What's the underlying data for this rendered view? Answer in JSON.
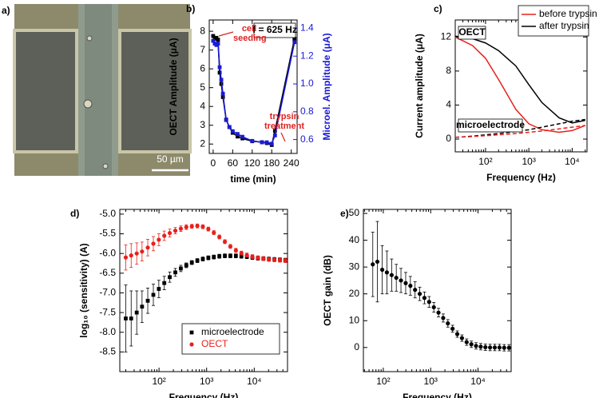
{
  "chart_data": [
    {
      "type": "image",
      "panel": "a)",
      "scale_bar": "50 µm"
    },
    {
      "type": "line",
      "panel": "b)",
      "xlabel": "time (min)",
      "ylabel": "OECT Amplitude (μA)",
      "y2label": "Microel. Amplitude (μA)",
      "x": [
        0,
        5,
        10,
        15,
        20,
        25,
        30,
        40,
        50,
        60,
        75,
        90,
        120,
        150,
        165,
        180,
        190,
        250
      ],
      "xlim": [
        -12,
        258
      ],
      "xticks": [
        0,
        60,
        120,
        180,
        240
      ],
      "ylim": [
        1.5,
        8.6
      ],
      "yticks": [
        2,
        3,
        4,
        5,
        6,
        7,
        8
      ],
      "y2lim": [
        0.5,
        1.46
      ],
      "y2ticks": [
        0.6,
        0.8,
        {
          "value": 1,
          "label": "1.0"
        },
        1.2,
        1.4
      ],
      "series": [
        {
          "color": "#000000",
          "marker": "square",
          "values": [
            7.75,
            7.6,
            7.65,
            7.55,
            5.8,
            5.2,
            4.5,
            3.3,
            2.9,
            2.6,
            2.4,
            2.3,
            2.15,
            2.1,
            2.05,
            1.95,
            2.7,
            7.6
          ]
        },
        {
          "color": "#1a1ad6",
          "marker": "square",
          "axis": "y2",
          "values": [
            1.31,
            1.29,
            1.28,
            1.29,
            1.12,
            1.03,
            0.93,
            0.74,
            0.69,
            0.66,
            0.64,
            0.62,
            0.59,
            0.58,
            0.58,
            0.57,
            0.63,
            1.3
          ]
        }
      ],
      "annotations": [
        {
          "text": "cell seeding",
          "color": "#e02020"
        },
        {
          "text": "trypsin treatment",
          "color": "#e02020"
        },
        {
          "text": "f = 625 Hz",
          "color": "#000000"
        }
      ]
    },
    {
      "type": "line",
      "panel": "c)",
      "xlabel": "Frequency (Hz)",
      "ylabel": "Current amplitude (μA)",
      "log_x": true,
      "x": [
        20,
        50,
        100,
        200,
        500,
        1000,
        2000,
        5000,
        10000,
        20000
      ],
      "xlim": [
        20,
        22000
      ],
      "xticks": [
        {
          "value": 100,
          "label": "10²"
        },
        {
          "value": 1000,
          "label": "10³"
        },
        {
          "value": 10000,
          "label": "10⁴"
        }
      ],
      "ylim": [
        -1.5,
        14
      ],
      "yticks": [
        0,
        4,
        8,
        12
      ],
      "legend": "upper right",
      "series": [
        {
          "name": "before trypsin",
          "color": "#e8201c",
          "values": [
            12,
            11,
            9.5,
            7,
            3.5,
            1.8,
            1.1,
            0.8,
            1.0,
            1.6
          ]
        },
        {
          "name": "after trypsin",
          "color": "#000000",
          "values": [
            12.1,
            11.8,
            11.3,
            10.4,
            8.6,
            6.4,
            4.3,
            2.5,
            1.9,
            2.2
          ]
        },
        {
          "color": "#000000",
          "dash": true,
          "values": [
            0.2,
            0.35,
            0.5,
            0.65,
            0.9,
            1.1,
            1.4,
            1.8,
            2.1,
            2.3
          ]
        },
        {
          "color": "#e8201c",
          "dash": true,
          "values": [
            0.2,
            0.3,
            0.4,
            0.5,
            0.65,
            0.8,
            0.95,
            1.2,
            1.4,
            1.6
          ]
        }
      ],
      "annotations": [
        {
          "text": "OECT",
          "color": "#000000"
        },
        {
          "text": "microelectrode",
          "color": "#000000"
        }
      ]
    },
    {
      "type": "scatter",
      "panel": "d)",
      "xlabel": "Frequency (Hz)",
      "ylabel": "log₁₀ (sensitivity) (A)",
      "log_x": true,
      "x": [
        20,
        26,
        34,
        44,
        58,
        76,
        99,
        129,
        168,
        220,
        287,
        374,
        489,
        638,
        832,
        1086,
        1418,
        1850,
        2415,
        3152,
        4114,
        5369,
        7007,
        9145,
        11935,
        15577,
        20330,
        26533,
        34628,
        45000
      ],
      "xlim": [
        15,
        50000
      ],
      "xticks": [
        {
          "value": 100,
          "label": "10²"
        },
        {
          "value": 1000,
          "label": "10³"
        },
        {
          "value": 10000,
          "label": "10⁴"
        }
      ],
      "ylim": [
        -9.0,
        -4.88
      ],
      "yticks": [
        -8.5,
        {
          "value": -8,
          "label": "-8.0"
        },
        -7.5,
        {
          "value": -7,
          "label": "-7.0"
        },
        -6.5,
        {
          "value": -6,
          "label": "-6.0"
        },
        -5.5,
        {
          "value": -5,
          "label": "-5.0"
        }
      ],
      "legend": "lower right",
      "series": [
        {
          "name": "microelectrode",
          "color": "#000000",
          "marker": "square",
          "values": [
            -7.65,
            -7.65,
            -7.5,
            -7.35,
            -7.2,
            -7.05,
            -6.9,
            -6.75,
            -6.6,
            -6.48,
            -6.38,
            -6.3,
            -6.23,
            -6.18,
            -6.14,
            -6.11,
            -6.09,
            -6.07,
            -6.06,
            -6.06,
            -6.06,
            -6.07,
            -6.08,
            -6.1,
            -6.12,
            -6.13,
            -6.14,
            -6.15,
            -6.16,
            -6.17
          ],
          "errors": [
            0.85,
            0.7,
            0.55,
            0.4,
            0.32,
            0.27,
            0.22,
            0.17,
            0.13,
            0.1,
            0.08,
            0.06,
            0.05,
            0.05,
            0.05,
            0.05,
            0.05,
            0.05,
            0.05,
            0.05,
            0.05,
            0.05,
            0.05,
            0.05,
            0.05,
            0.05,
            0.05,
            0.05,
            0.05,
            0.05
          ]
        },
        {
          "name": "OECT",
          "color": "#e8201c",
          "marker": "circle",
          "values": [
            -6.1,
            -6.05,
            -6.0,
            -5.95,
            -5.85,
            -5.75,
            -5.65,
            -5.55,
            -5.48,
            -5.42,
            -5.37,
            -5.33,
            -5.31,
            -5.3,
            -5.32,
            -5.38,
            -5.47,
            -5.58,
            -5.7,
            -5.82,
            -5.92,
            -5.99,
            -6.04,
            -6.08,
            -6.11,
            -6.13,
            -6.15,
            -6.16,
            -6.17,
            -6.18
          ],
          "errors": [
            0.32,
            0.3,
            0.27,
            0.24,
            0.21,
            0.18,
            0.15,
            0.12,
            0.1,
            0.08,
            0.07,
            0.06,
            0.05,
            0.05,
            0.05,
            0.05,
            0.05,
            0.05,
            0.05,
            0.05,
            0.05,
            0.05,
            0.05,
            0.05,
            0.05,
            0.05,
            0.05,
            0.05,
            0.05,
            0.05
          ]
        }
      ]
    },
    {
      "type": "scatter",
      "panel": "e)",
      "xlabel": "Frequency (Hz)",
      "ylabel": "OECT gain (dB)",
      "log_x": true,
      "x": [
        60,
        75,
        95,
        119,
        150,
        188,
        236,
        297,
        373,
        468,
        588,
        739,
        928,
        1166,
        1464,
        1839,
        2310,
        2901,
        3644,
        4577,
        5749,
        7221,
        9070,
        11392,
        14308,
        17971,
        22572,
        28350,
        35608,
        45000
      ],
      "xlim": [
        38,
        50000
      ],
      "xticks": [
        {
          "value": 100,
          "label": "10²"
        },
        {
          "value": 1000,
          "label": "10³"
        },
        {
          "value": 10000,
          "label": "10⁴"
        }
      ],
      "ylim": [
        -9,
        51.5
      ],
      "yticks": [
        0,
        10,
        20,
        30,
        40,
        50
      ],
      "series": [
        {
          "color": "#000000",
          "marker": "circle",
          "values": [
            31,
            32,
            29,
            28,
            27,
            26,
            25,
            24,
            23,
            21.5,
            20,
            18.5,
            17,
            15,
            13,
            11,
            9,
            7,
            5,
            3.5,
            2,
            1.2,
            0.6,
            0.3,
            0.1,
            0,
            0,
            0,
            -0.1,
            -0.1
          ],
          "errors": [
            12,
            15,
            9,
            8,
            6,
            5,
            4.5,
            4,
            3.5,
            3,
            2.5,
            2.2,
            2,
            1.8,
            1.6,
            1.5,
            1.4,
            1.3,
            1.2,
            1.2,
            1.2,
            1.2,
            1.2,
            1.2,
            1.2,
            1.2,
            1.2,
            1.2,
            1.2,
            1.2
          ]
        }
      ]
    }
  ]
}
